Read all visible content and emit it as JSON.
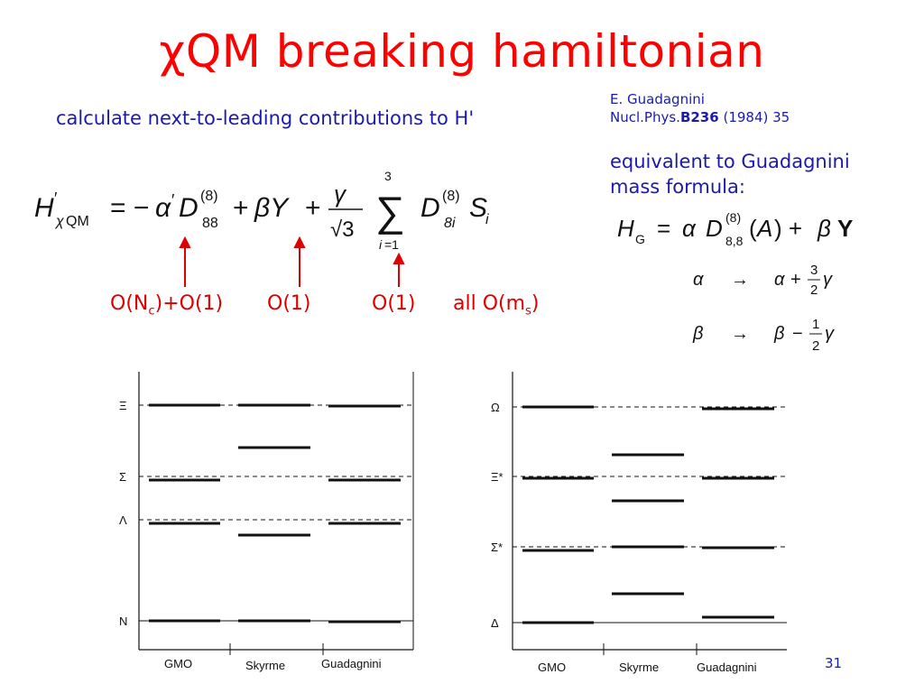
{
  "slide": {
    "title": "χQM breaking hamiltonian",
    "subtitle": "calculate next-to-leading contributions to H'",
    "reference": {
      "author": "E. Guadagnini",
      "journal": "Nucl.Phys.",
      "volume": "B236",
      "year": "(1984) 35"
    },
    "equivalent_line1": "equivalent to Guadagnini",
    "equivalent_line2": "mass formula:",
    "page_number": "31"
  },
  "equations": {
    "main_lhs": "H'_{χQM}",
    "main_rhs": "= −α′ D^{(8)}_{88} + βY + γ/√3 Σ_{i=1}^{3} D^{(8)}_{8i} S_i",
    "guadagnini": "H_G = α D^{(8)}_{8,8}(A) + β Y",
    "alpha_map": "α → α + (3/2)γ",
    "beta_map": "β → β − (1/2)γ"
  },
  "orders": {
    "o1": "O(N",
    "o1_sub": "c",
    "o1_tail": ")+O(1)",
    "o2": "O(1)",
    "o3": "O(1)",
    "o4": "all O(m",
    "o4_sub": "s",
    "o4_tail": ")"
  },
  "plots": [
    {
      "levels": [
        "Ξ",
        "Σ",
        "Λ",
        "N"
      ],
      "columns": [
        "GMO",
        "Skyrme",
        "Guadagnini"
      ]
    },
    {
      "levels": [
        "Ω",
        "Ξ*",
        "Σ*",
        "Δ"
      ],
      "columns": [
        "GMO",
        "Skyrme",
        "Guadagnini"
      ]
    }
  ]
}
